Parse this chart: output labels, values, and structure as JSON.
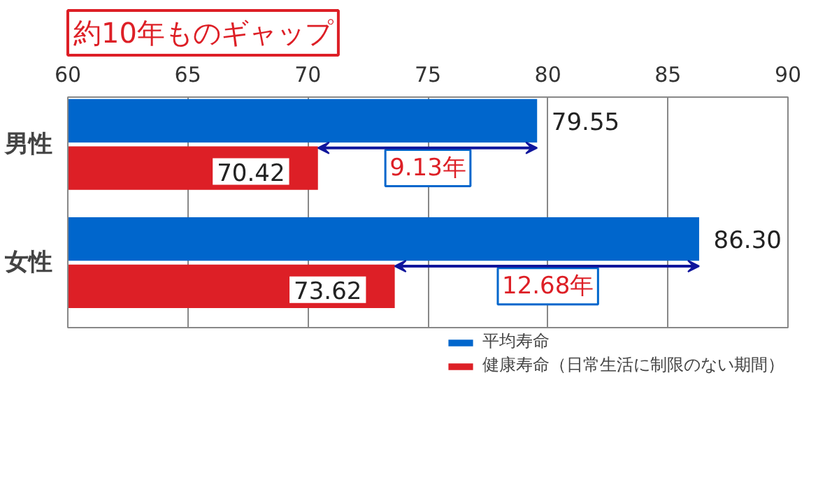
{
  "chart_data": {
    "type": "bar",
    "orientation": "horizontal",
    "title": "約10年ものギャップ",
    "categories": [
      "男性",
      "女性"
    ],
    "series": [
      {
        "name": "平均寿命",
        "color": "#0066cc",
        "values": [
          79.55,
          86.3
        ],
        "value_labels": [
          "79.55",
          "86.30"
        ]
      },
      {
        "name": "健康寿命（日常生活に制限のない期間）",
        "color": "#dd1f26",
        "values": [
          70.42,
          73.62
        ],
        "value_labels": [
          "70.42",
          "73.62"
        ]
      }
    ],
    "xlim": [
      60,
      90
    ],
    "xticks": [
      60,
      65,
      70,
      75,
      80,
      85,
      90
    ],
    "grid": "x",
    "legend": "bottom right",
    "annotations": [
      {
        "text": "9.13年",
        "x": 75,
        "y": "男性"
      },
      {
        "text": "12.68年",
        "x": 80,
        "y": "女性"
      }
    ]
  }
}
